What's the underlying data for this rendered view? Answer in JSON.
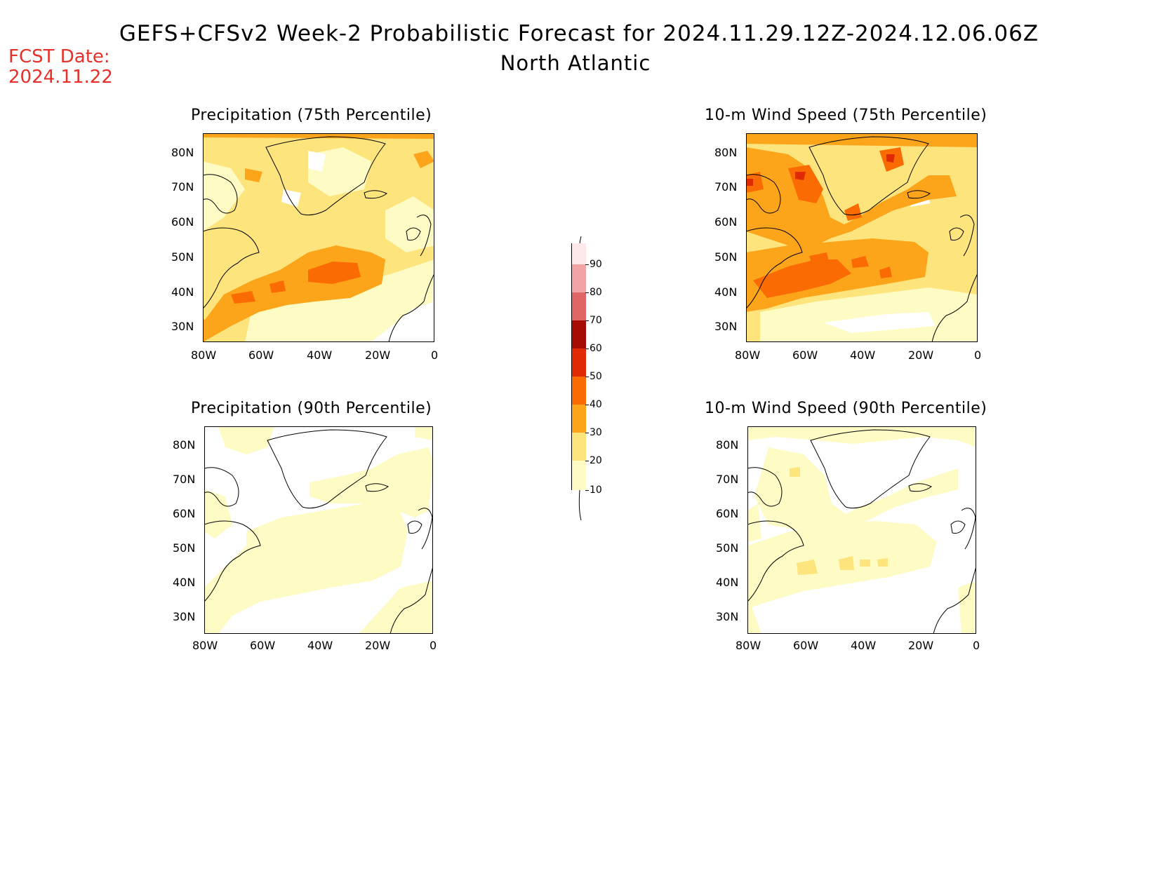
{
  "title": {
    "line1": "GEFS+CFSv2 Week-2 Probabilistic Forecast for 2024.11.29.12Z-2024.12.06.06Z",
    "line2": "North Atlantic"
  },
  "fcst_date": {
    "label": "FCST Date:",
    "value": "2024.11.22"
  },
  "panels": [
    {
      "title": "Precipitation (75th Percentile)",
      "id": "precip-75"
    },
    {
      "title": "10-m Wind Speed (75th Percentile)",
      "id": "wind-75"
    },
    {
      "title": "Precipitation (90th Percentile)",
      "id": "precip-90"
    },
    {
      "title": "10-m Wind Speed (90th Percentile)",
      "id": "wind-90"
    }
  ],
  "axes": {
    "lat_labels": [
      "80N",
      "70N",
      "60N",
      "50N",
      "40N",
      "30N"
    ],
    "lon_labels": [
      "80W",
      "60W",
      "40W",
      "20W",
      "0"
    ]
  },
  "colorbar": {
    "levels": [
      "10",
      "20",
      "30",
      "40",
      "50",
      "60",
      "70",
      "80",
      "90"
    ],
    "colors": [
      "#fffbc4",
      "#fde47c",
      "#fda51a",
      "#fb6b03",
      "#e02a05",
      "#a50c03",
      "#e06566",
      "#f2a4a5",
      "#fde8ea"
    ]
  }
}
